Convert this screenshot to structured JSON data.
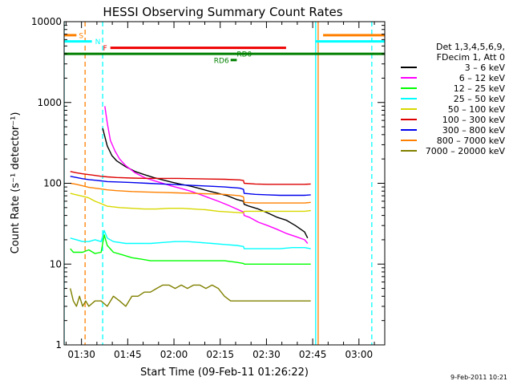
{
  "chart_data": {
    "type": "line",
    "title": "HESSI Observing Summary Count Rates",
    "xlabel": "Start Time (09-Feb-11 01:26:22)",
    "ylabel": "Count Rate (s⁻¹ detector⁻¹)",
    "y_scale": "log",
    "ylim": [
      1,
      10000
    ],
    "xlim_minutes": [
      -2,
      102
    ],
    "x_ticks": [
      {
        "label": "01:30",
        "min": 3.63
      },
      {
        "label": "01:45",
        "min": 18.63
      },
      {
        "label": "02:00",
        "min": 33.63
      },
      {
        "label": "02:15",
        "min": 48.63
      },
      {
        "label": "02:30",
        "min": 63.63
      },
      {
        "label": "02:45",
        "min": 78.63
      },
      {
        "label": "03:00",
        "min": 93.63
      }
    ],
    "y_ticks": [
      {
        "label": "1",
        "value": 1
      },
      {
        "label": "10",
        "value": 10
      },
      {
        "label": "100",
        "value": 100
      },
      {
        "label": "1000",
        "value": 1000
      },
      {
        "label": "10000",
        "value": 10000
      }
    ],
    "legend": {
      "placement": "right",
      "header": [
        "Det 1,3,4,5,6,9,",
        "FDecim 1, Att 0"
      ],
      "entries": [
        {
          "label": "3 – 6 keV",
          "color": "#000000"
        },
        {
          "label": "6 – 12 keV",
          "color": "#ff00ff"
        },
        {
          "label": "12 – 25 keV",
          "color": "#00ff00"
        },
        {
          "label": "25 – 50 keV",
          "color": "#00ffff"
        },
        {
          "label": "50 – 100 keV",
          "color": "#d8d800"
        },
        {
          "label": "100 – 300 keV",
          "color": "#dd0000"
        },
        {
          "label": "300 – 800 keV",
          "color": "#0000ee"
        },
        {
          "label": "800 – 7000 keV",
          "color": "#ff8000"
        },
        {
          "label": "7000 – 20000 keV",
          "color": "#808000"
        }
      ]
    },
    "series": [
      {
        "name": "3 – 6 keV",
        "color": "#000000",
        "x": [
          10.5,
          12,
          13.5,
          15,
          18,
          21,
          24,
          27,
          30,
          33,
          36,
          39,
          42,
          45,
          48,
          51,
          54,
          56.2,
          56.4,
          58,
          61,
          64,
          67,
          70,
          73,
          76,
          77
        ],
        "y": [
          480,
          290,
          220,
          190,
          160,
          140,
          128,
          118,
          110,
          103,
          97,
          92,
          86,
          80,
          75,
          70,
          63,
          60,
          55,
          52,
          48,
          43,
          38,
          35,
          30,
          25,
          21
        ]
      },
      {
        "name": "6 – 12 keV",
        "color": "#ff00ff",
        "x": [
          11.2,
          12,
          13,
          14.5,
          16,
          18,
          21,
          24,
          27,
          30,
          33,
          36,
          39,
          42,
          45,
          48,
          51,
          54,
          56.2,
          56.4,
          58,
          61,
          64,
          67,
          70,
          73,
          76,
          77
        ],
        "y": [
          900,
          560,
          340,
          250,
          200,
          165,
          135,
          118,
          108,
          100,
          92,
          86,
          80,
          73,
          66,
          60,
          54,
          48,
          44,
          40,
          38,
          33,
          30,
          27,
          24,
          22,
          20,
          18
        ]
      },
      {
        "name": "12 – 25 keV",
        "color": "#00ff00",
        "x": [
          0,
          1,
          2,
          4,
          6,
          8,
          10,
          11,
          12,
          14,
          17,
          20,
          23,
          26,
          30,
          34,
          38,
          42,
          46,
          50,
          54,
          56.2,
          56.4,
          60,
          64,
          68,
          72,
          76,
          78
        ],
        "y": [
          15.5,
          14,
          14,
          14,
          15,
          13.5,
          14,
          23,
          17,
          14,
          13,
          12,
          11.5,
          11,
          11,
          11,
          11,
          11,
          11,
          11,
          10.5,
          10.2,
          10,
          10,
          10,
          10,
          10,
          10,
          10
        ]
      },
      {
        "name": "25 – 50 keV",
        "color": "#00ffff",
        "x": [
          0,
          2,
          4,
          6,
          8,
          10,
          11,
          12,
          14,
          18,
          22,
          26,
          30,
          34,
          38,
          42,
          46,
          50,
          54,
          56.2,
          56.4,
          60,
          64,
          68,
          72,
          76,
          78
        ],
        "y": [
          21,
          20,
          19,
          19,
          20,
          19,
          26,
          21,
          19,
          18,
          18,
          18,
          18.5,
          19,
          19,
          18.5,
          18,
          17.5,
          17,
          16.5,
          15.5,
          15.5,
          15.5,
          15.5,
          16,
          16,
          15.5
        ]
      },
      {
        "name": "50 – 100 keV",
        "color": "#d8d800",
        "x": [
          0,
          2,
          4,
          6,
          8,
          10,
          12,
          16,
          20,
          24,
          28,
          32,
          36,
          40,
          44,
          48,
          52,
          56.2,
          56.4,
          60,
          64,
          68,
          72,
          76,
          78
        ],
        "y": [
          75,
          72,
          69,
          66,
          60,
          56,
          52,
          50,
          49,
          48,
          48,
          49,
          49,
          48,
          47,
          45,
          44,
          43,
          45,
          45,
          45,
          45,
          45,
          45,
          46
        ]
      },
      {
        "name": "100 – 300 keV",
        "color": "#dd0000",
        "x": [
          0,
          2,
          4,
          6,
          8,
          10,
          12,
          15,
          20,
          25,
          30,
          35,
          40,
          45,
          50,
          55,
          56.2,
          56.4,
          60,
          64,
          68,
          72,
          76,
          78
        ],
        "y": [
          140,
          135,
          131,
          128,
          125,
          122,
          120,
          118,
          116,
          115,
          115,
          115,
          114,
          113,
          112,
          110,
          108,
          100,
          98,
          97,
          97,
          97,
          97,
          98
        ]
      },
      {
        "name": "300 – 800 keV",
        "color": "#0000ee",
        "x": [
          0,
          2,
          4,
          6,
          8,
          10,
          12,
          15,
          20,
          25,
          30,
          35,
          40,
          45,
          50,
          55,
          56.2,
          56.4,
          60,
          64,
          68,
          72,
          76,
          78
        ],
        "y": [
          122,
          118,
          114,
          111,
          109,
          107,
          105,
          104,
          102,
          100,
          98,
          96,
          94,
          92,
          90,
          87,
          84,
          75,
          73,
          72,
          71,
          71,
          71,
          72
        ]
      },
      {
        "name": "800 – 7000 keV",
        "color": "#ff8000",
        "x": [
          0,
          2,
          4,
          6,
          8,
          10,
          12,
          15,
          20,
          25,
          30,
          35,
          40,
          45,
          50,
          55,
          56.2,
          56.4,
          60,
          64,
          68,
          72,
          76,
          78
        ],
        "y": [
          100,
          97,
          93,
          89,
          87,
          85,
          83,
          81,
          79,
          78,
          77,
          76,
          75,
          74,
          73,
          70,
          68,
          58,
          57,
          57,
          57,
          57,
          57,
          58
        ]
      },
      {
        "name": "7000 – 20000 keV",
        "color": "#808000",
        "x": [
          0,
          1,
          2,
          3,
          4,
          5,
          6,
          8,
          10,
          12,
          14,
          16,
          18,
          20,
          22,
          24,
          26,
          28,
          30,
          32,
          34,
          36,
          38,
          40,
          42,
          44,
          46,
          48,
          50,
          52,
          54,
          56,
          58,
          60,
          62,
          64,
          66,
          68,
          70,
          72,
          74,
          76,
          78
        ],
        "y": [
          5,
          3.5,
          3,
          4,
          3,
          3.5,
          3,
          3.5,
          3.5,
          3,
          4,
          3.5,
          3,
          4,
          4,
          4.5,
          4.5,
          5,
          5.5,
          5.5,
          5,
          5.5,
          5,
          5.5,
          5.5,
          5,
          5.5,
          5,
          4,
          3.5,
          3.5,
          3.5,
          3.5,
          3.5,
          3.5,
          3.5,
          3.5,
          3.5,
          3.5,
          3.5,
          3.5,
          3.5,
          3.5
        ]
      }
    ],
    "status_bars": [
      {
        "label": "S",
        "color": "#ff8000",
        "segments": [
          [
            -2,
            2
          ],
          [
            82,
            102
          ]
        ],
        "y": 6800
      },
      {
        "label": "N",
        "color": "#00ffff",
        "segments": [
          [
            -2,
            7
          ],
          [
            79.5,
            102
          ]
        ],
        "y": 5700
      },
      {
        "label": "F",
        "color": "#ee0000",
        "segments": [
          [
            13,
            70
          ]
        ],
        "y": 4750
      },
      {
        "label": "RD0",
        "color": "#008000",
        "segments": [
          [
            -2,
            102
          ]
        ],
        "y": 4000
      },
      {
        "label": "RD6",
        "color": "#008000",
        "segments": [
          [
            52,
            54
          ]
        ],
        "y": 3350
      }
    ],
    "vertical_markers": [
      {
        "color": "#00ffff",
        "dashed": false,
        "x": -2
      },
      {
        "color": "#ff8000",
        "dashed": true,
        "x": 4.8
      },
      {
        "color": "#00ffff",
        "dashed": true,
        "x": 10.5
      },
      {
        "color": "#00ffff",
        "dashed": false,
        "x": 79.6
      },
      {
        "color": "#ff8000",
        "dashed": false,
        "x": 80.4
      },
      {
        "color": "#00ffff",
        "dashed": true,
        "x": 97.8
      }
    ]
  },
  "date_stamp": "9-Feb-2011 10:21"
}
